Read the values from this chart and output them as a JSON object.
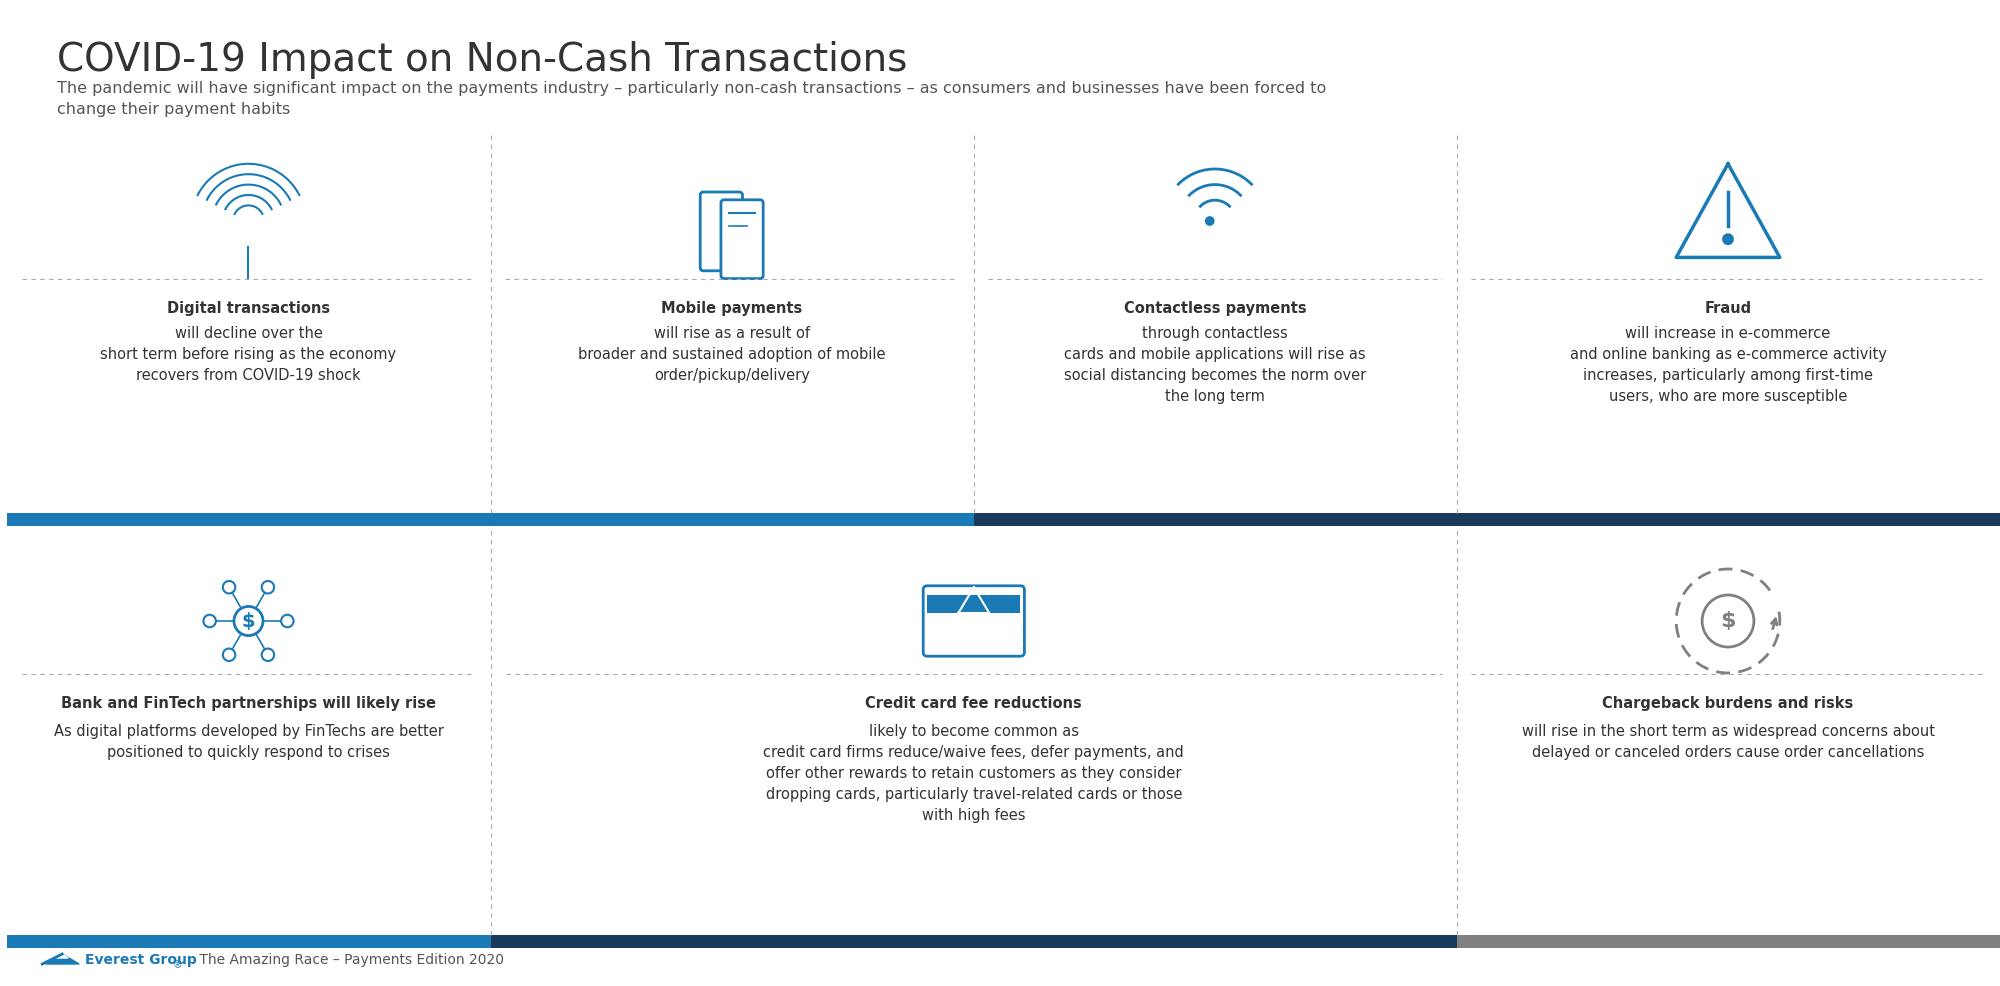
{
  "title": "COVID-19 Impact on Non-Cash Transactions",
  "subtitle": "The pandemic will have significant impact on the payments industry – particularly non-cash transactions – as consumers and businesses have been forced to\nchange their payment habits",
  "background_color": "#ffffff",
  "title_color": "#333333",
  "subtitle_color": "#555555",
  "blue_color": "#1a7ab5",
  "dark_blue_color": "#1a3a5c",
  "teal_color": "#2b7da3",
  "bar_blue": "#1a7ab5",
  "bar_dark": "#2c3e50",
  "bar_gray": "#808080",
  "divider_color": "#cccccc",
  "row1_items": [
    {
      "bold_text": "Digital transactions",
      "regular_text": " will decline over the\nshort term before rising as the economy\nrecovers from COVID-19 shock"
    },
    {
      "bold_text": "Mobile payments",
      "regular_text": " will rise as a result of\nbroader and sustained adoption of mobile\norder/pickup/delivery"
    },
    {
      "bold_text": "Contactless payments",
      "regular_text": " through contactless\ncards and mobile applications will rise as\nsocial distancing becomes the norm over\nthe long term"
    },
    {
      "bold_text": "Fraud",
      "regular_text": " will increase in e-commerce\nand online banking as e-commerce activity\nincreases, particularly among first-time\nusers, who are more susceptible"
    }
  ],
  "row2_items": [
    {
      "bold_text": "Bank and FinTech partnerships will likely rise",
      "regular_text": "\nAs digital platforms developed by FinTechs are better\npositioned to quickly respond to crises"
    },
    {
      "bold_text": "Credit card fee reductions",
      "regular_text": " likely to become common as\ncredit card firms reduce/waive fees, defer payments, and\noffer other rewards to retain customers as they consider\ndropping cards, particularly travel-related cards or those\nwith high fees"
    },
    {
      "bold_text": "Chargeback burdens and risks",
      "regular_text": "\nwill rise in the short term as widespread concerns about\ndelayed or canceled orders cause order cancellations"
    }
  ],
  "footer_text": "The Amazing Race – Payments Edition 2020",
  "footer_brand": "Everest Group",
  "footer_brand_color": "#1a7ab5"
}
